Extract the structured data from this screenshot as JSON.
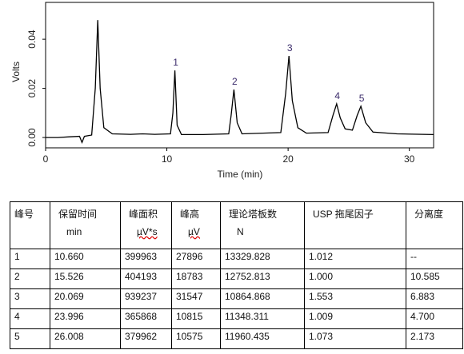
{
  "chart_data": {
    "type": "line",
    "x_label": "Time (min)",
    "y_label": "Volts",
    "x": [
      0,
      1,
      2,
      2.8,
      3.0,
      3.2,
      3.8,
      4.1,
      4.3,
      4.5,
      4.8,
      5.5,
      7,
      8,
      9,
      10.3,
      10.5,
      10.66,
      10.85,
      11.2,
      13,
      15.1,
      15.3,
      15.53,
      15.8,
      16.2,
      19.4,
      19.8,
      20.07,
      20.35,
      20.8,
      21.5,
      23.3,
      23.7,
      24.0,
      24.3,
      24.7,
      25.3,
      25.7,
      26.0,
      26.4,
      27,
      29,
      32
    ],
    "values": [
      0.0,
      0.0,
      0.0003,
      0.0005,
      -0.002,
      0.0005,
      0.001,
      0.02,
      0.0478,
      0.02,
      0.004,
      0.0015,
      0.0013,
      0.0015,
      0.0013,
      0.0015,
      0.01,
      0.0273,
      0.005,
      0.0012,
      0.0012,
      0.0015,
      0.009,
      0.0195,
      0.006,
      0.0015,
      0.002,
      0.018,
      0.0332,
      0.015,
      0.004,
      0.0018,
      0.002,
      0.009,
      0.0137,
      0.008,
      0.0035,
      0.003,
      0.009,
      0.0127,
      0.006,
      0.0022,
      0.0015,
      0.0012
    ],
    "color": "#000000",
    "xlim": [
      0,
      32
    ],
    "ylim": [
      -0.0042,
      0.055
    ],
    "xticks": [
      0,
      10,
      20,
      30
    ],
    "yticks": [
      {
        "value": 0,
        "label": "0.00"
      },
      {
        "value": 0.02,
        "label": "0.02"
      },
      {
        "value": 0.04,
        "label": "0.04"
      }
    ],
    "annotations": [
      {
        "text": "1",
        "x": 10.66,
        "y": 0.0273
      },
      {
        "text": "2",
        "x": 15.53,
        "y": 0.0195
      },
      {
        "text": "3",
        "x": 20.07,
        "y": 0.0332
      },
      {
        "text": "4",
        "x": 24.0,
        "y": 0.0137
      },
      {
        "text": "5",
        "x": 26.0,
        "y": 0.0127
      }
    ]
  },
  "table": {
    "columns": [
      {
        "title": "峰号"
      },
      {
        "title": "保留时间",
        "unit": "min"
      },
      {
        "title": "峰面积",
        "unit": "µV*s"
      },
      {
        "title": "峰高",
        "unit": "µV"
      },
      {
        "title": "理论塔板数",
        "unit": "N"
      },
      {
        "title": "USP 拖尾因子"
      },
      {
        "title": "分离度"
      }
    ],
    "rows": [
      [
        "1",
        "10.660",
        "399963",
        "27896",
        "13329.828",
        "1.012",
        "--"
      ],
      [
        "2",
        "15.526",
        "404193",
        "18783",
        "12752.813",
        "1.000",
        "10.585"
      ],
      [
        "3",
        "20.069",
        "939237",
        "31547",
        "10864.868",
        "1.553",
        "6.883"
      ],
      [
        "4",
        "23.996",
        "365868",
        "10815",
        "11348.311",
        "1.009",
        "4.700"
      ],
      [
        "5",
        "26.008",
        "379962",
        "10575",
        "11960.435",
        "1.073",
        "2.173"
      ]
    ]
  }
}
